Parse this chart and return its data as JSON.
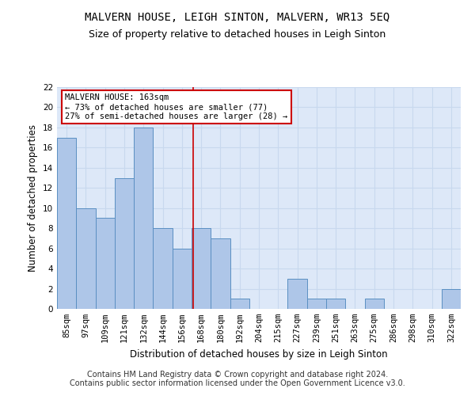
{
  "title": "MALVERN HOUSE, LEIGH SINTON, MALVERN, WR13 5EQ",
  "subtitle": "Size of property relative to detached houses in Leigh Sinton",
  "xlabel": "Distribution of detached houses by size in Leigh Sinton",
  "ylabel": "Number of detached properties",
  "categories": [
    "85sqm",
    "97sqm",
    "109sqm",
    "121sqm",
    "132sqm",
    "144sqm",
    "156sqm",
    "168sqm",
    "180sqm",
    "192sqm",
    "204sqm",
    "215sqm",
    "227sqm",
    "239sqm",
    "251sqm",
    "263sqm",
    "275sqm",
    "286sqm",
    "298sqm",
    "310sqm",
    "322sqm"
  ],
  "values": [
    17,
    10,
    9,
    13,
    18,
    8,
    6,
    8,
    7,
    1,
    0,
    0,
    3,
    1,
    1,
    0,
    1,
    0,
    0,
    0,
    2
  ],
  "bar_color": "#aec6e8",
  "bar_edge_color": "#5a8fc2",
  "annotation_line1": "MALVERN HOUSE: 163sqm",
  "annotation_line2": "← 73% of detached houses are smaller (77)",
  "annotation_line3": "27% of semi-detached houses are larger (28) →",
  "annotation_box_color": "#ffffff",
  "annotation_box_edge": "#cc0000",
  "vline_color": "#cc0000",
  "ylim": [
    0,
    22
  ],
  "yticks": [
    0,
    2,
    4,
    6,
    8,
    10,
    12,
    14,
    16,
    18,
    20,
    22
  ],
  "grid_color": "#c8d8ee",
  "background_color": "#dde8f8",
  "footer_line1": "Contains HM Land Registry data © Crown copyright and database right 2024.",
  "footer_line2": "Contains public sector information licensed under the Open Government Licence v3.0.",
  "title_fontsize": 10,
  "subtitle_fontsize": 9,
  "xlabel_fontsize": 8.5,
  "ylabel_fontsize": 8.5,
  "tick_fontsize": 7.5,
  "footer_fontsize": 7,
  "annot_fontsize": 7.5
}
